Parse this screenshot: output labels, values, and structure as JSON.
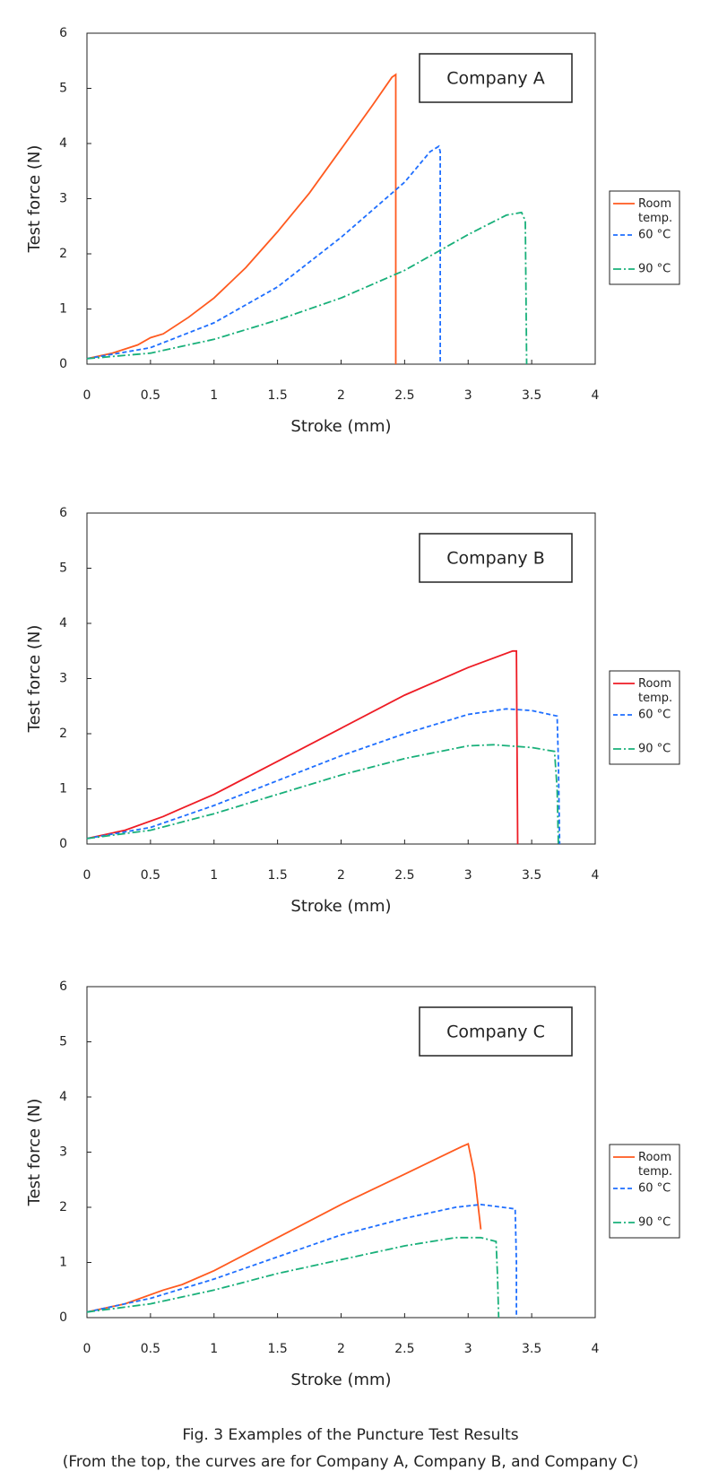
{
  "chart_data": [
    {
      "type": "line",
      "annotation": "Company A",
      "x_label": "Stroke (mm)",
      "y_label": "Test force (N)",
      "xlim": [
        0,
        4
      ],
      "xticks": [
        0,
        0.5,
        1,
        1.5,
        2,
        2.5,
        3,
        3.5,
        4
      ],
      "ylim": [
        0,
        6
      ],
      "yticks": [
        0,
        1,
        2,
        3,
        4,
        5,
        6
      ],
      "series": [
        {
          "name": "Room temp.",
          "color": "#ff5a1f",
          "line_style": "solid",
          "x": [
            0,
            0.2,
            0.4,
            0.5,
            0.6,
            0.8,
            1,
            1.25,
            1.5,
            1.75,
            2,
            2.25,
            2.4,
            2.43,
            2.43
          ],
          "values": [
            0.1,
            0.2,
            0.35,
            0.48,
            0.55,
            0.85,
            1.2,
            1.75,
            2.4,
            3.1,
            3.9,
            4.7,
            5.2,
            5.25,
            0
          ]
        },
        {
          "name": "60 °C",
          "color": "#1f6fff",
          "line_style": "dashed",
          "x": [
            0,
            0.5,
            1,
            1.5,
            2,
            2.5,
            2.7,
            2.77,
            2.78,
            2.78
          ],
          "values": [
            0.1,
            0.3,
            0.75,
            1.4,
            2.3,
            3.3,
            3.85,
            3.95,
            3.85,
            0
          ]
        },
        {
          "name": "90 °C",
          "color": "#19b07a",
          "line_style": "dashdot",
          "x": [
            0,
            0.5,
            1,
            1.5,
            2,
            2.5,
            3,
            3.3,
            3.42,
            3.45,
            3.46
          ],
          "values": [
            0.1,
            0.2,
            0.45,
            0.8,
            1.2,
            1.7,
            2.35,
            2.7,
            2.75,
            2.6,
            0
          ]
        }
      ]
    },
    {
      "type": "line",
      "annotation": "Company B",
      "x_label": "Stroke (mm)",
      "y_label": "Test force (N)",
      "xlim": [
        0,
        4
      ],
      "xticks": [
        0,
        0.5,
        1,
        1.5,
        2,
        2.5,
        3,
        3.5,
        4
      ],
      "ylim": [
        0,
        6
      ],
      "yticks": [
        0,
        1,
        2,
        3,
        4,
        5,
        6
      ],
      "series": [
        {
          "name": "Room temp.",
          "color": "#ee1c25",
          "line_style": "solid",
          "x": [
            0,
            0.3,
            0.6,
            0.7,
            1,
            1.5,
            2,
            2.5,
            3,
            3.35,
            3.38,
            3.39
          ],
          "values": [
            0.1,
            0.25,
            0.5,
            0.6,
            0.9,
            1.5,
            2.1,
            2.7,
            3.2,
            3.5,
            3.5,
            0
          ]
        },
        {
          "name": "60 °C",
          "color": "#1f6fff",
          "line_style": "dashed",
          "x": [
            0,
            0.5,
            1,
            1.5,
            2,
            2.5,
            3,
            3.3,
            3.5,
            3.7,
            3.71,
            3.72
          ],
          "values": [
            0.1,
            0.3,
            0.7,
            1.15,
            1.6,
            2.0,
            2.35,
            2.45,
            2.42,
            2.32,
            1.5,
            0
          ]
        },
        {
          "name": "90 °C",
          "color": "#19b07a",
          "line_style": "dashdot",
          "x": [
            0,
            0.5,
            1,
            1.5,
            2,
            2.5,
            3,
            3.2,
            3.5,
            3.68,
            3.7,
            3.71
          ],
          "values": [
            0.1,
            0.25,
            0.55,
            0.9,
            1.25,
            1.55,
            1.78,
            1.8,
            1.75,
            1.68,
            1.0,
            0
          ]
        }
      ]
    },
    {
      "type": "line",
      "annotation": "Company C",
      "x_label": "Stroke (mm)",
      "y_label": "Test force (N)",
      "xlim": [
        0,
        4
      ],
      "xticks": [
        0,
        0.5,
        1,
        1.5,
        2,
        2.5,
        3,
        3.5,
        4
      ],
      "ylim": [
        0,
        6
      ],
      "yticks": [
        0,
        1,
        2,
        3,
        4,
        5,
        6
      ],
      "series": [
        {
          "name": "Room temp.",
          "color": "#ff5a1f",
          "line_style": "solid",
          "x": [
            0,
            0.3,
            0.6,
            0.75,
            1,
            1.5,
            2,
            2.5,
            2.95,
            3.0,
            3.05,
            3.1
          ],
          "values": [
            0.1,
            0.25,
            0.5,
            0.6,
            0.85,
            1.45,
            2.05,
            2.6,
            3.1,
            3.15,
            2.6,
            1.6
          ]
        },
        {
          "name": "60 °C",
          "color": "#1f6fff",
          "line_style": "dashed",
          "x": [
            0,
            0.5,
            1,
            1.5,
            2,
            2.5,
            2.9,
            3.1,
            3.37,
            3.38,
            3.38
          ],
          "values": [
            0.1,
            0.35,
            0.7,
            1.1,
            1.5,
            1.8,
            2.0,
            2.05,
            1.97,
            1.0,
            0
          ]
        },
        {
          "name": "90 °C",
          "color": "#19b07a",
          "line_style": "dashdot",
          "x": [
            0,
            0.5,
            1,
            1.5,
            2,
            2.5,
            2.9,
            3.1,
            3.22,
            3.23,
            3.24
          ],
          "values": [
            0.1,
            0.25,
            0.5,
            0.8,
            1.05,
            1.3,
            1.45,
            1.45,
            1.38,
            0.8,
            0
          ]
        }
      ]
    }
  ],
  "caption": [
    "Fig. 3 Examples of the Puncture Test Results",
    "(From the top, the curves are for Company A, Company B, and Company C)"
  ]
}
